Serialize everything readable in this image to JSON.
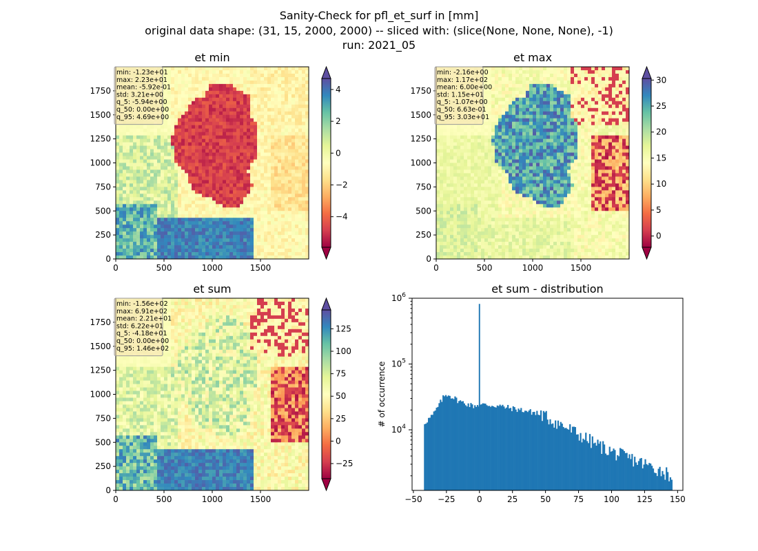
{
  "figure": {
    "suptitle_lines": [
      "Sanity-Check for pfl_et_surf in [mm]",
      "original data shape: (31, 15, 2000, 2000) -- sliced with: (slice(None, None, None), -1)",
      "run: 2021_05"
    ]
  },
  "chart_data": [
    {
      "type": "heatmap",
      "title": "et min",
      "xlim": [
        0,
        2000
      ],
      "ylim": [
        0,
        2000
      ],
      "xticks": [
        0,
        500,
        1000,
        1500
      ],
      "yticks": [
        0,
        250,
        500,
        750,
        1000,
        1250,
        1500,
        1750
      ],
      "colormap": "Spectral",
      "colorbar": {
        "vmin": -5.92,
        "vmax": 4.69,
        "ticks": [
          -4,
          -2,
          0,
          2,
          4
        ],
        "extend": "both"
      },
      "stats": [
        "min: -1.23e+01",
        "max: 2.23e+01",
        "mean: -5.92e-01",
        "std: 3.21e+00",
        "q_5: -5.94e+00",
        "q_50: 0.00e+00",
        "q_95: 4.69e+00"
      ]
    },
    {
      "type": "heatmap",
      "title": "et max",
      "xlim": [
        0,
        2000
      ],
      "ylim": [
        0,
        2000
      ],
      "xticks": [
        0,
        500,
        1000,
        1500
      ],
      "yticks": [
        0,
        250,
        500,
        750,
        1000,
        1250,
        1500,
        1750
      ],
      "colormap": "Spectral",
      "colorbar": {
        "vmin": -2.16,
        "vmax": 30.3,
        "ticks": [
          0,
          5,
          10,
          15,
          20,
          25,
          30
        ],
        "extend": "both"
      },
      "stats": [
        "min: -2.16e+00",
        "max: 1.17e+02",
        "mean: 6.00e+00",
        "std: 1.15e+01",
        "q_5: -1.07e+00",
        "q_50: 6.63e-01",
        "q_95: 3.03e+01"
      ]
    },
    {
      "type": "heatmap",
      "title": "et sum",
      "xlim": [
        0,
        2000
      ],
      "ylim": [
        0,
        2000
      ],
      "xticks": [
        0,
        500,
        1000,
        1500
      ],
      "yticks": [
        0,
        250,
        500,
        750,
        1000,
        1250,
        1500,
        1750
      ],
      "colormap": "Spectral",
      "colorbar": {
        "vmin": -41.8,
        "vmax": 146,
        "ticks": [
          -25,
          0,
          25,
          50,
          75,
          100,
          125
        ],
        "extend": "both"
      },
      "stats": [
        "min: -1.56e+02",
        "max: 6.91e+02",
        "mean: 2.21e+01",
        "std: 6.22e+01",
        "q_5: -4.18e+01",
        "q_50: 0.00e+00",
        "q_95: 1.46e+02"
      ]
    },
    {
      "type": "bar",
      "title": "et sum - distribution",
      "xlabel": "",
      "ylabel": "# of occurrence",
      "xlim": [
        -51,
        154
      ],
      "ylim": [
        1200,
        1000000
      ],
      "yscale": "log",
      "xticks": [
        -50,
        -25,
        0,
        25,
        50,
        75,
        100,
        125,
        150
      ],
      "yticks": [
        10000,
        100000,
        1000000
      ],
      "yticklabel_exponents": [
        "4",
        "5",
        "6"
      ],
      "color": "#1f77b4",
      "x_range": [
        -42,
        146
      ],
      "bin_width": 1,
      "anchors": [
        [
          -42,
          12500
        ],
        [
          -35,
          17000
        ],
        [
          -30,
          25000
        ],
        [
          -27,
          32000
        ],
        [
          -24,
          35000
        ],
        [
          -20,
          31000
        ],
        [
          -15,
          27000
        ],
        [
          -10,
          25000
        ],
        [
          -5,
          23000
        ],
        [
          -1,
          24000
        ],
        [
          5,
          24000
        ],
        [
          15,
          23000
        ],
        [
          25,
          21000
        ],
        [
          35,
          19500
        ],
        [
          45,
          17500
        ],
        [
          55,
          14000
        ],
        [
          65,
          11000
        ],
        [
          75,
          8500
        ],
        [
          85,
          6500
        ],
        [
          95,
          5200
        ],
        [
          105,
          4200
        ],
        [
          115,
          3600
        ],
        [
          125,
          3000
        ],
        [
          135,
          2500
        ],
        [
          146,
          2000
        ]
      ],
      "spikes": [
        {
          "x": 0,
          "value": 820000
        }
      ]
    }
  ]
}
